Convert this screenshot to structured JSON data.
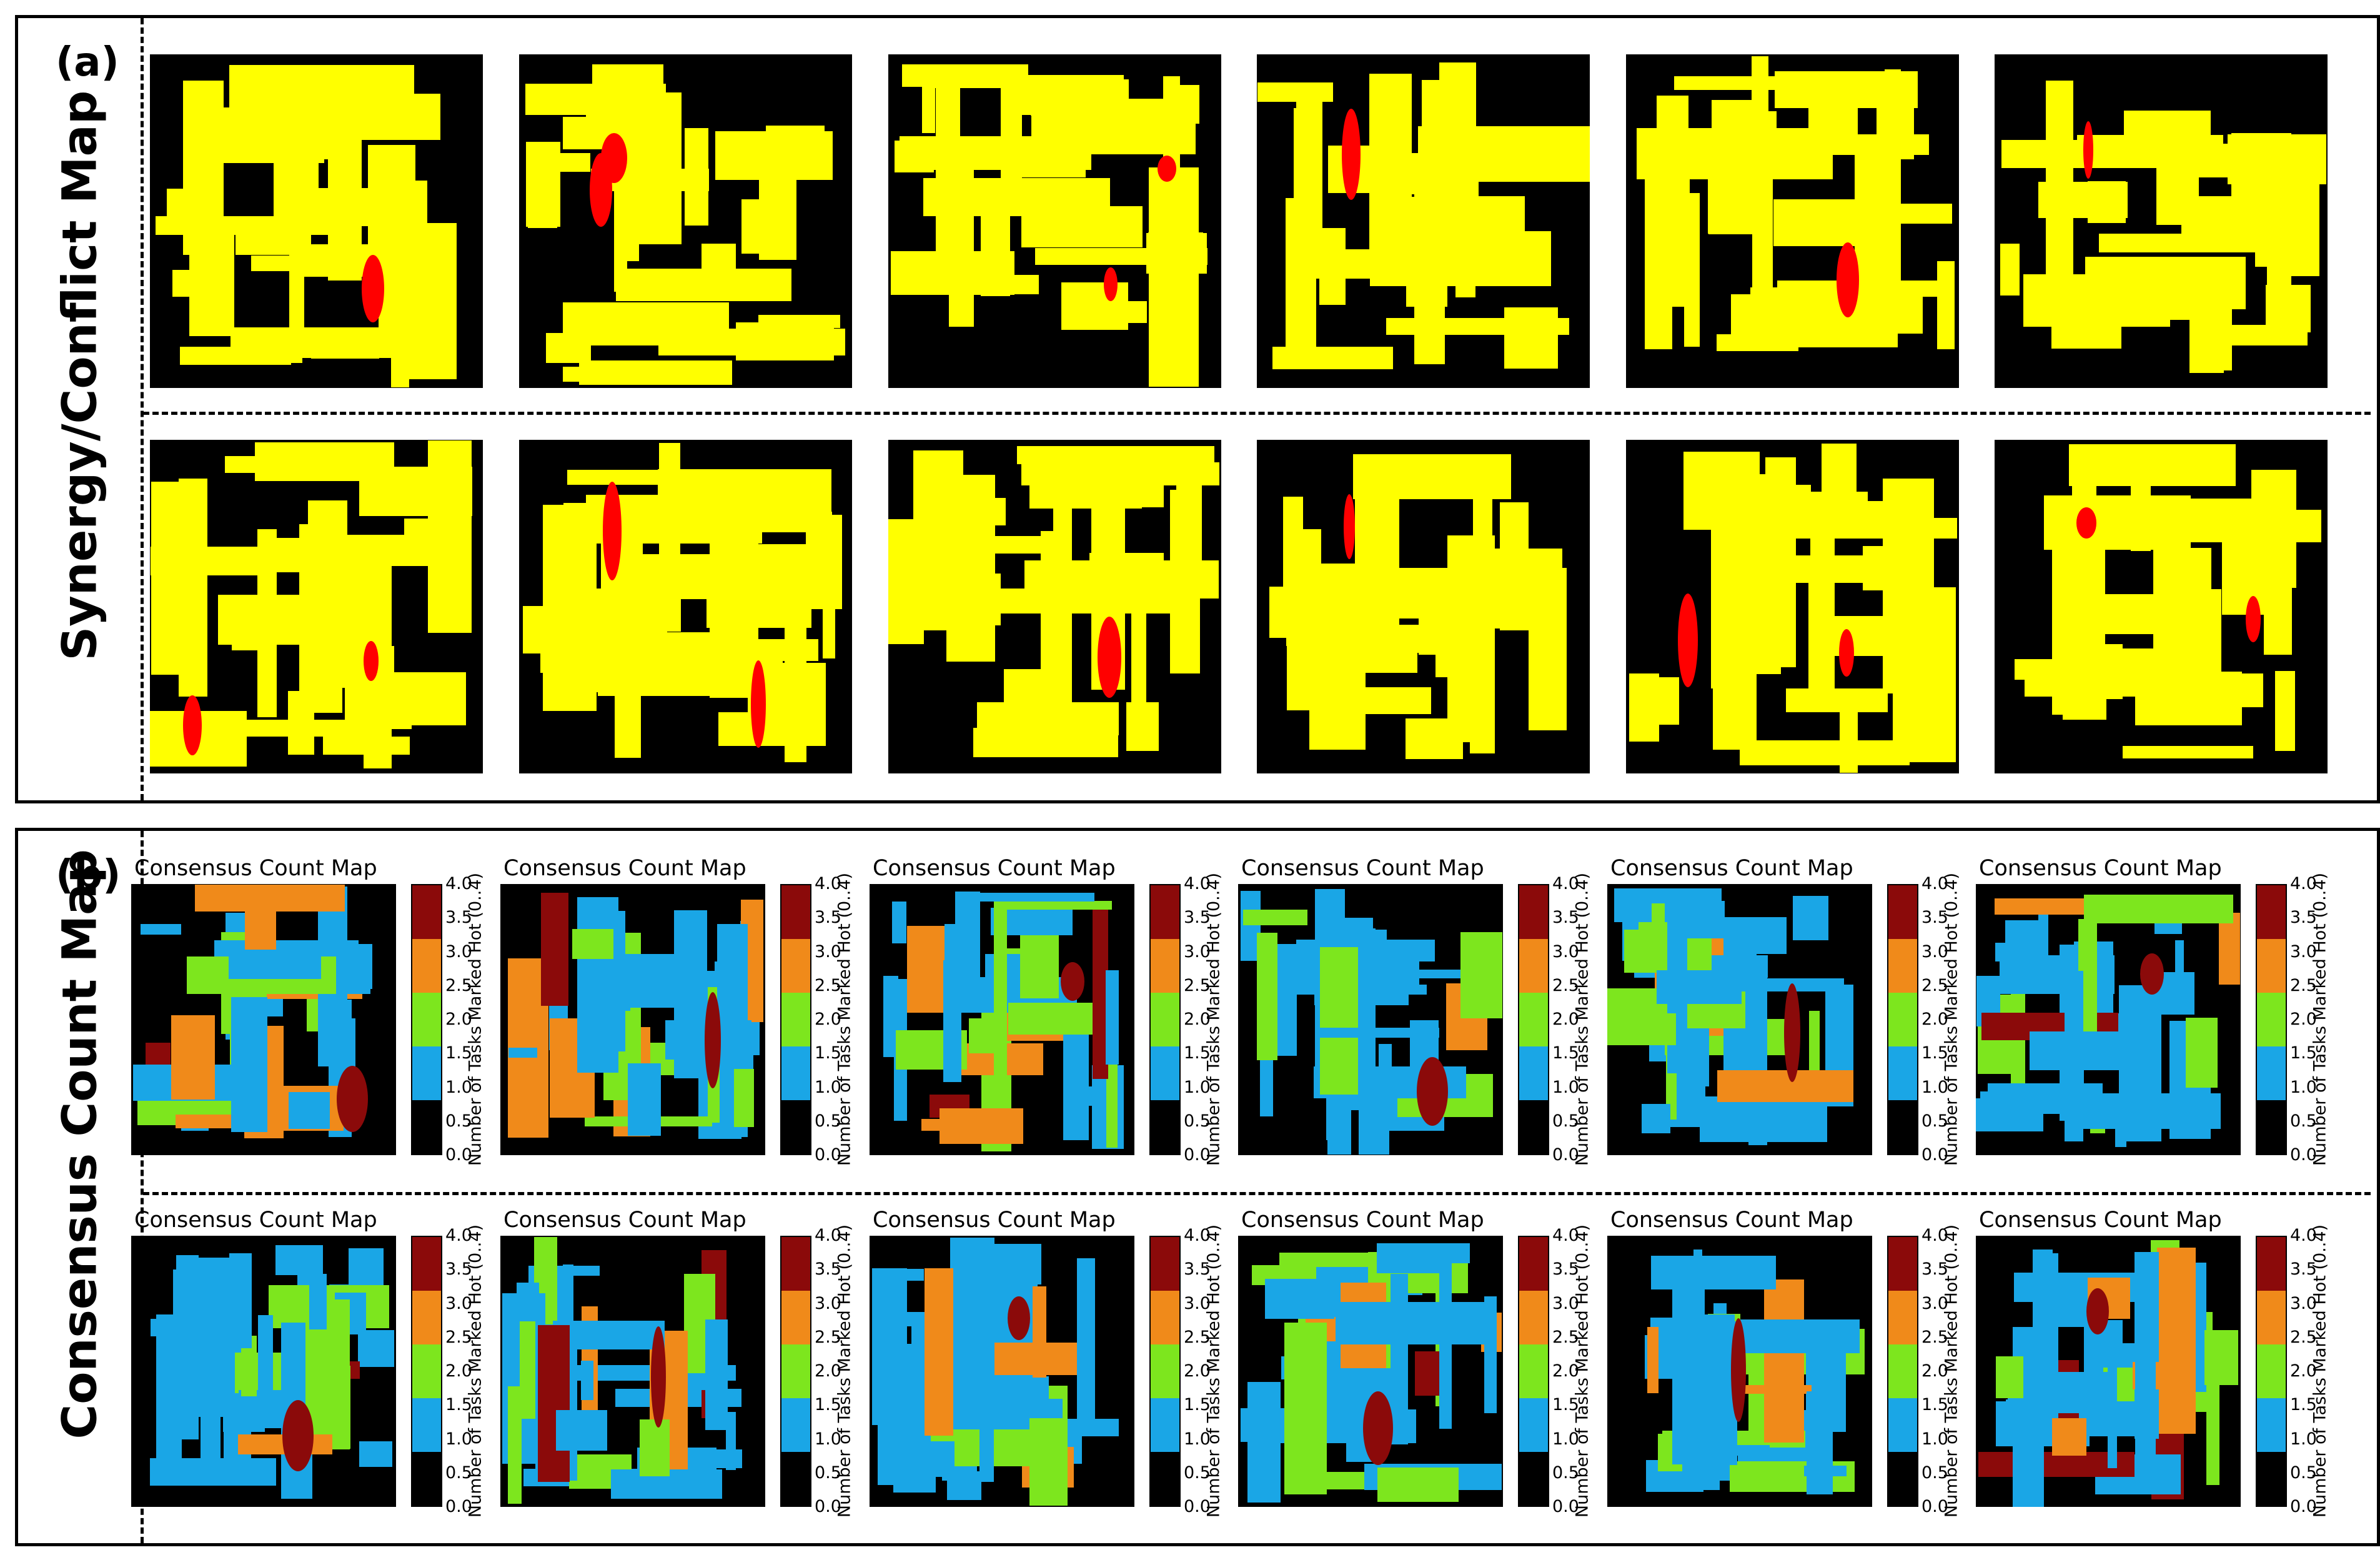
{
  "panel_a": {
    "letter": "(a)",
    "row_label": "Synergy/Conflict Map"
  },
  "panel_b": {
    "letter": "(b)",
    "row_label": "Consensus Count Map"
  },
  "colors": {
    "synergy": "#ffff00",
    "conflict": "#ff0000",
    "background": "#000000"
  },
  "chart_data": {
    "type": "heatmap",
    "panels": [
      {
        "id": "a",
        "kind": "synergy-conflict",
        "grid": [
          2,
          6
        ],
        "categories": [
          "black",
          "yellow",
          "red"
        ]
      },
      {
        "id": "b",
        "kind": "consensus-count",
        "grid": [
          2,
          6
        ],
        "subplot_title": "Consensus Count Map",
        "colorbar": {
          "label": "Number of Tasks Marked Hot (0..4)",
          "ticks": [
            "0.0",
            "0.5",
            "1.0",
            "1.5",
            "2.0",
            "2.5",
            "3.0",
            "3.5",
            "4.0"
          ],
          "range": [
            0,
            4
          ],
          "levels": [
            {
              "value": 0,
              "color": "#000000"
            },
            {
              "value": 1,
              "color": "#1aa6e6"
            },
            {
              "value": 2,
              "color": "#7de61e"
            },
            {
              "value": 3,
              "color": "#f08a1a"
            },
            {
              "value": 4,
              "color": "#8b0a0a"
            }
          ]
        }
      }
    ]
  }
}
